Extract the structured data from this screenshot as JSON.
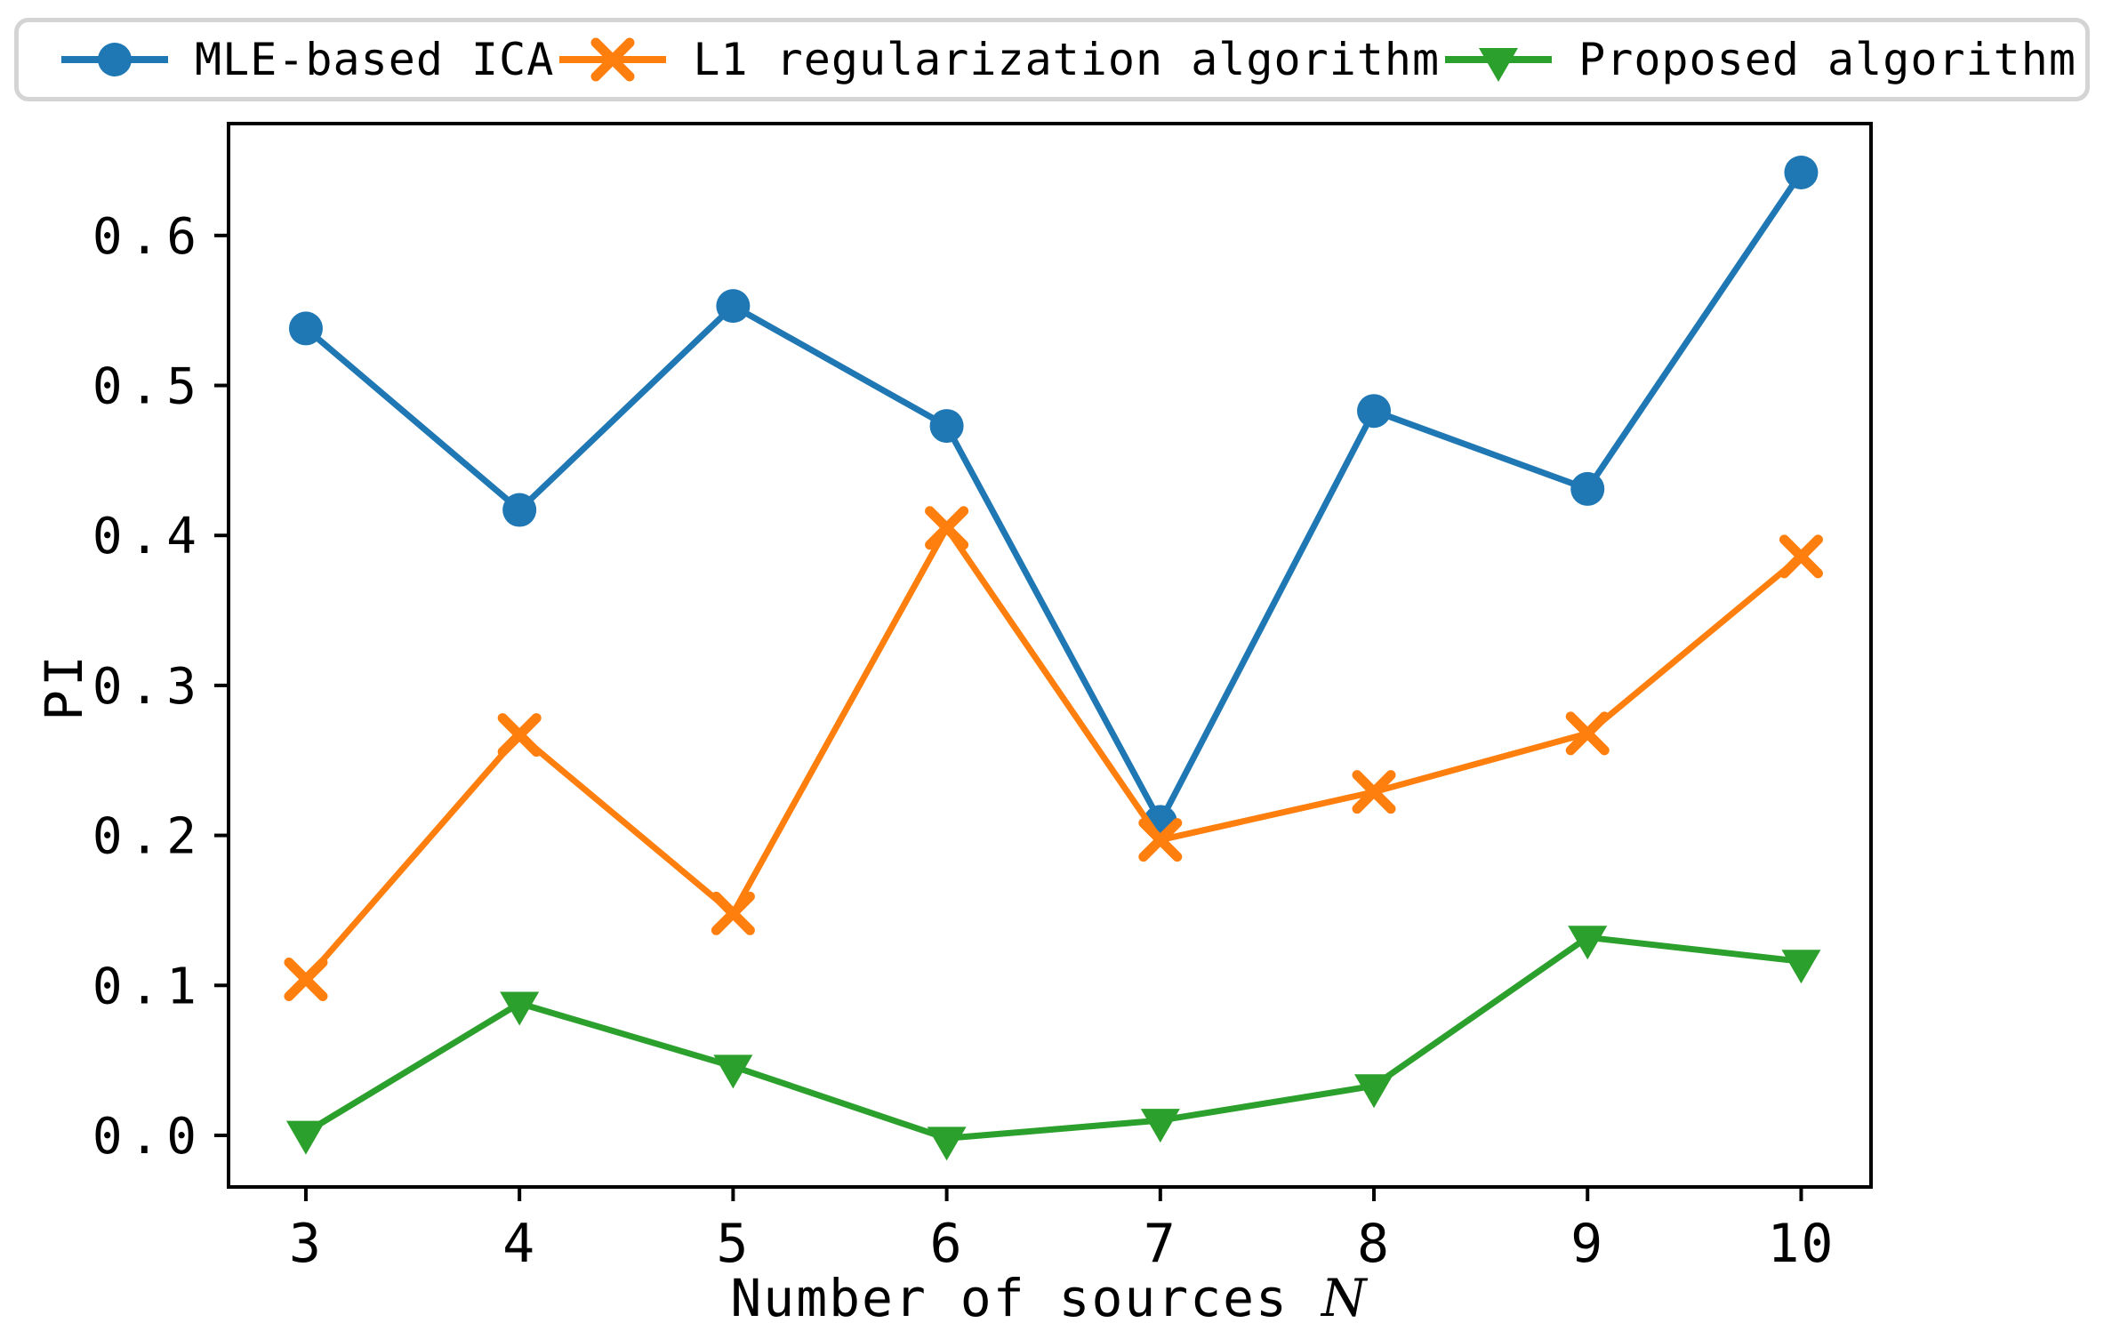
{
  "figure": {
    "background": "#ffffff",
    "axes_border_color": "#000000"
  },
  "legend": {
    "items": [
      {
        "label": "MLE-based ICA",
        "color": "#1f77b4",
        "marker": "circle"
      },
      {
        "label": "L1 regularization algorithm",
        "color": "#ff7f0e",
        "marker": "x"
      },
      {
        "label": "Proposed algorithm",
        "color": "#2ca02c",
        "marker": "triangle-down"
      }
    ]
  },
  "chart_data": {
    "type": "line",
    "title": "",
    "xlabel": "Number of sources N",
    "xlabel_prefix": "Number of sources ",
    "xlabel_var": "N",
    "ylabel": "PI",
    "x": [
      3,
      4,
      5,
      6,
      7,
      8,
      9,
      10
    ],
    "xticks": [
      "3",
      "4",
      "5",
      "6",
      "7",
      "8",
      "9",
      "10"
    ],
    "yticks": [
      "0.0",
      "0.1",
      "0.2",
      "0.3",
      "0.4",
      "0.5",
      "0.6"
    ],
    "xlim": [
      2.638,
      10.327
    ],
    "ylim": [
      -0.0344,
      0.6746
    ],
    "grid": false,
    "legend_position": "top",
    "series": [
      {
        "name": "MLE-based ICA",
        "color": "#1f77b4",
        "marker": "circle",
        "values": [
          0.538,
          0.417,
          0.553,
          0.473,
          0.209,
          0.483,
          0.431,
          0.642
        ]
      },
      {
        "name": "L1 regularization algorithm",
        "color": "#ff7f0e",
        "marker": "x",
        "values": [
          0.104,
          0.267,
          0.148,
          0.405,
          0.197,
          0.229,
          0.268,
          0.386
        ]
      },
      {
        "name": "Proposed algorithm",
        "color": "#2ca02c",
        "marker": "triangle-down",
        "values": [
          0.002,
          0.088,
          0.046,
          -0.002,
          0.01,
          0.033,
          0.132,
          0.116
        ]
      }
    ]
  }
}
